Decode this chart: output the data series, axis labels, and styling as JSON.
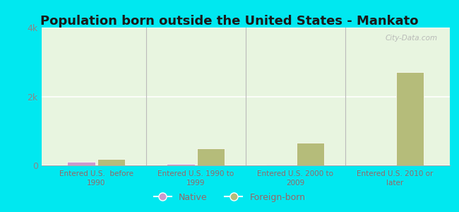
{
  "title": "Population born outside the United States - Mankato",
  "categories": [
    "Entered U.S.  before\n1990",
    "Entered U.S. 1990 to\n1999",
    "Entered U.S. 2000 to\n2009",
    "Entered U.S. 2010 or\nlater"
  ],
  "native_values": [
    100,
    45,
    18,
    10
  ],
  "foreign_values": [
    185,
    490,
    665,
    2700
  ],
  "native_color": "#cc99cc",
  "foreign_color": "#b5bc7a",
  "background_top": "#c8e6c0",
  "background_bottom": "#e8f5e0",
  "outer_background": "#00e8f0",
  "title_color": "#1a1a1a",
  "axis_label_color": "#996666",
  "tick_color": "#888888",
  "ylim": [
    0,
    4000
  ],
  "yticks": [
    0,
    2000,
    4000
  ],
  "ytick_labels": [
    "0",
    "2k",
    "4k"
  ],
  "bar_width": 0.28,
  "title_fontsize": 13,
  "legend_native_label": "Native",
  "legend_foreign_label": "Foreign-born",
  "watermark": "City-Data.com",
  "sep_color": "#bbbbbb",
  "grid_color": "#ccddcc"
}
